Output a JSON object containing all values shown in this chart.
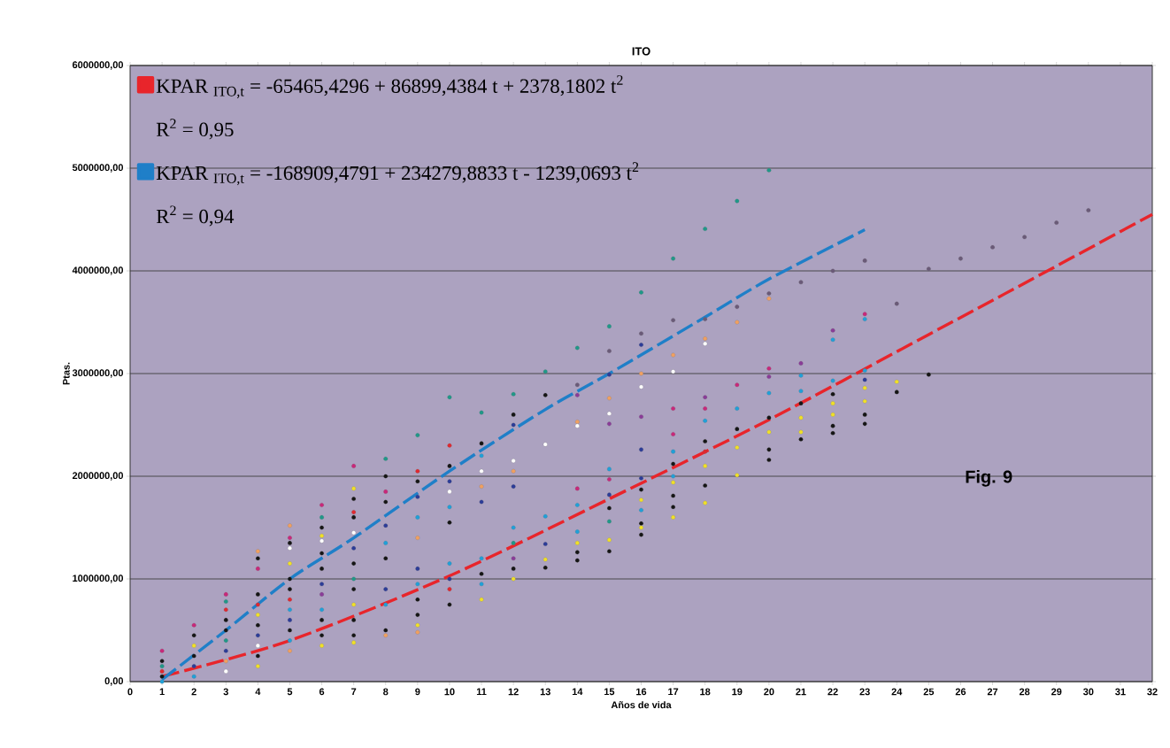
{
  "chart_data": {
    "type": "scatter",
    "title": "ITO",
    "xlabel": "Años de vida",
    "ylabel": "Ptas.",
    "xlim": [
      0,
      32
    ],
    "ylim": [
      0,
      6000000
    ],
    "xticks": [
      0,
      1,
      2,
      3,
      4,
      5,
      6,
      7,
      8,
      9,
      10,
      11,
      12,
      13,
      14,
      15,
      16,
      17,
      18,
      19,
      20,
      21,
      22,
      23,
      24,
      25,
      26,
      27,
      28,
      29,
      30,
      31,
      32
    ],
    "yticks": [
      {
        "value": 0,
        "label": "0,00"
      },
      {
        "value": 1000000,
        "label": "1000000,00"
      },
      {
        "value": 2000000,
        "label": "2000000,00"
      },
      {
        "value": 3000000,
        "label": "3000000,00"
      },
      {
        "value": 4000000,
        "label": "4000000,00"
      },
      {
        "value": 5000000,
        "label": "5000000,00"
      },
      {
        "value": 6000000,
        "label": "6000000,00"
      }
    ],
    "grid": "y",
    "legend": "top left",
    "annotations": [
      "R$^{2}$ = 0,95",
      "R$^{2}$ = 0,94",
      "Fig. 9"
    ],
    "series": [
      {
        "marker": "circle",
        "x": [
          1,
          1,
          1,
          1,
          1,
          1,
          2,
          2,
          2,
          2,
          2,
          2,
          3,
          3,
          3,
          3,
          3,
          3,
          3,
          3,
          3,
          4,
          4,
          4,
          4,
          4,
          4,
          4,
          4,
          4,
          4,
          4,
          5,
          5,
          5,
          5,
          5,
          5,
          5,
          5,
          5,
          5,
          5,
          5,
          5,
          6,
          6,
          6,
          6,
          6,
          6,
          6,
          6,
          6,
          6,
          6,
          6,
          6,
          7,
          7,
          7,
          7,
          7,
          7,
          7,
          7,
          7,
          7,
          7,
          7,
          7,
          7,
          8,
          8,
          8,
          8,
          8,
          8,
          8,
          8,
          8,
          8,
          8,
          9,
          9,
          9,
          9,
          9,
          9,
          9,
          9,
          9,
          9,
          9,
          9,
          10,
          10,
          10,
          10,
          10,
          10,
          10,
          10,
          10,
          10,
          10,
          11,
          11,
          11,
          11,
          11,
          11,
          11,
          11,
          11,
          11,
          12,
          12,
          12,
          12,
          12,
          12,
          12,
          12,
          12,
          12,
          12,
          13,
          13,
          13,
          13,
          13,
          13,
          13,
          14,
          14,
          14,
          14,
          14,
          14,
          14,
          14,
          14,
          14,
          14,
          15,
          15,
          15,
          15,
          15,
          15,
          15,
          15,
          15,
          15,
          15,
          15,
          15,
          16,
          16,
          16,
          16,
          16,
          16,
          16,
          16,
          16,
          16,
          16,
          16,
          16,
          16,
          17,
          17,
          17,
          17,
          17,
          17,
          17,
          17,
          17,
          17,
          17,
          17,
          17,
          18,
          18,
          18,
          18,
          18,
          18,
          18,
          18,
          18,
          18,
          18,
          18,
          19,
          19,
          19,
          19,
          19,
          19,
          19,
          19,
          20,
          20,
          20,
          20,
          20,
          20,
          20,
          20,
          20,
          20,
          21,
          21,
          21,
          21,
          21,
          21,
          21,
          21,
          22,
          22,
          22,
          22,
          22,
          22,
          22,
          22,
          22,
          23,
          23,
          23,
          23,
          23,
          23,
          23,
          23,
          23,
          24,
          24,
          24,
          25,
          25,
          26,
          27,
          28,
          29,
          30
        ],
        "values": [
          300000,
          200000,
          150000,
          100000,
          50000,
          0,
          550000,
          450000,
          350000,
          250000,
          150000,
          50000,
          850000,
          780000,
          700000,
          600000,
          500000,
          400000,
          300000,
          200000,
          100000,
          1270000,
          1200000,
          1100000,
          850000,
          750000,
          650000,
          550000,
          450000,
          350000,
          250000,
          150000,
          1520000,
          1400000,
          1350000,
          1300000,
          1150000,
          1000000,
          900000,
          800000,
          700000,
          600000,
          500000,
          400000,
          300000,
          1720000,
          1600000,
          1500000,
          1420000,
          1370000,
          1250000,
          1100000,
          950000,
          850000,
          700000,
          600000,
          450000,
          350000,
          2100000,
          1880000,
          1780000,
          1650000,
          1600000,
          1450000,
          1300000,
          1150000,
          1000000,
          900000,
          750000,
          600000,
          450000,
          380000,
          2170000,
          2000000,
          1850000,
          1750000,
          1520000,
          1350000,
          1200000,
          900000,
          750000,
          500000,
          450000,
          2400000,
          2050000,
          1950000,
          1800000,
          1600000,
          1400000,
          1100000,
          950000,
          800000,
          650000,
          550000,
          480000,
          2770000,
          2300000,
          2100000,
          1950000,
          1850000,
          1700000,
          1550000,
          1150000,
          1000000,
          900000,
          750000,
          2620000,
          2320000,
          2200000,
          2050000,
          1900000,
          1750000,
          1200000,
          1050000,
          950000,
          800000,
          2800000,
          2600000,
          2500000,
          2150000,
          2050000,
          1900000,
          1500000,
          1350000,
          1200000,
          1100000,
          1000000,
          3020000,
          2790000,
          2310000,
          1610000,
          1340000,
          1190000,
          1110000,
          3250000,
          2890000,
          2790000,
          2530000,
          2490000,
          1880000,
          1720000,
          1460000,
          1350000,
          1260000,
          1180000,
          3460000,
          3220000,
          2990000,
          2760000,
          2610000,
          2510000,
          2070000,
          1970000,
          1820000,
          1690000,
          1560000,
          1380000,
          1270000,
          3790000,
          3390000,
          3280000,
          3000000,
          2870000,
          2580000,
          2260000,
          1980000,
          1870000,
          1770000,
          1670000,
          1540000,
          1500000,
          1430000,
          4120000,
          3520000,
          3180000,
          3020000,
          2660000,
          2410000,
          2240000,
          2120000,
          2000000,
          1940000,
          1810000,
          1700000,
          1600000,
          4410000,
          3530000,
          3340000,
          3290000,
          2770000,
          2660000,
          2540000,
          2340000,
          2240000,
          2100000,
          1910000,
          1740000,
          4680000,
          3650000,
          3500000,
          2890000,
          2660000,
          2460000,
          2280000,
          2010000,
          4980000,
          3780000,
          3730000,
          3050000,
          2970000,
          2810000,
          2570000,
          2430000,
          2260000,
          2160000,
          3890000,
          3100000,
          2980000,
          2830000,
          2710000,
          2570000,
          2430000,
          2360000,
          4000000,
          3420000,
          3330000,
          2930000,
          2800000,
          2710000,
          2600000,
          2490000,
          2420000,
          4100000,
          3580000,
          3530000,
          3030000,
          2940000,
          2860000,
          2730000,
          2600000,
          2510000,
          3680000,
          2920000,
          2820000,
          4020000,
          2990000,
          4120000,
          4230000,
          4330000,
          4470000,
          4590000
        ],
        "colors": [
          "#c8287a",
          "#151515",
          "#209888",
          "#e02830",
          "#151515",
          "#20a0d8",
          "#c8287a",
          "#151515",
          "#f0e028",
          "#151515",
          "#2c3c98",
          "#20a0d8",
          "#c8287a",
          "#209888",
          "#e02830",
          "#151515",
          "#151515",
          "#209888",
          "#2c3c98",
          "#f0a060",
          "#ffffff",
          "#f0a060",
          "#151515",
          "#c8287a",
          "#151515",
          "#e02830",
          "#f0e028",
          "#151515",
          "#2c3c98",
          "#ffffff",
          "#151515",
          "#f0e028",
          "#f0a060",
          "#c8287a",
          "#151515",
          "#ffffff",
          "#f0e028",
          "#151515",
          "#151515",
          "#e02830",
          "#20a0d8",
          "#2c3c98",
          "#151515",
          "#20a0d8",
          "#f0a060",
          "#c8287a",
          "#209888",
          "#151515",
          "#f0e028",
          "#ffffff",
          "#151515",
          "#151515",
          "#2c3c98",
          "#8a3c98",
          "#20a0d8",
          "#151515",
          "#151515",
          "#f0e028",
          "#c8287a",
          "#f0e028",
          "#151515",
          "#e02830",
          "#151515",
          "#ffffff",
          "#2c3c98",
          "#151515",
          "#209888",
          "#151515",
          "#f0e028",
          "#151515",
          "#151515",
          "#f0e028",
          "#209888",
          "#151515",
          "#c8287a",
          "#151515",
          "#2c3c98",
          "#20a0d8",
          "#151515",
          "#2c3c98",
          "#20a0d8",
          "#151515",
          "#f0a060",
          "#209888",
          "#e02830",
          "#151515",
          "#2c3c98",
          "#20a0d8",
          "#f0a060",
          "#2c3c98",
          "#20a0d8",
          "#151515",
          "#151515",
          "#f0e028",
          "#f0a060",
          "#209888",
          "#e02830",
          "#151515",
          "#2c3c98",
          "#ffffff",
          "#20a0d8",
          "#151515",
          "#20a0d8",
          "#2c3c98",
          "#e02830",
          "#151515",
          "#209888",
          "#151515",
          "#20a0d8",
          "#ffffff",
          "#f0a060",
          "#2c3c98",
          "#20a0d8",
          "#151515",
          "#20a0d8",
          "#f0e028",
          "#209888",
          "#151515",
          "#2c3c98",
          "#ffffff",
          "#f0a060",
          "#2c3c98",
          "#20a0d8",
          "#209888",
          "#8a3c98",
          "#151515",
          "#f0e028",
          "#209888",
          "#151515",
          "#ffffff",
          "#20a0d8",
          "#2c3c98",
          "#f0e028",
          "#151515",
          "#209888",
          "#6a5a78",
          "#8a3c98",
          "#f0a060",
          "#ffffff",
          "#c8287a",
          "#20a0d8",
          "#20a0d8",
          "#f0e028",
          "#151515",
          "#151515",
          "#209888",
          "#6a5a78",
          "#2c3c98",
          "#f0a060",
          "#ffffff",
          "#8a3c98",
          "#20a0d8",
          "#c8287a",
          "#2c3c98",
          "#151515",
          "#209888",
          "#f0e028",
          "#151515",
          "#209888",
          "#6a5a78",
          "#2c3c98",
          "#f0a060",
          "#ffffff",
          "#8a3c98",
          "#2c3c98",
          "#2c3c98",
          "#151515",
          "#f0e028",
          "#20a0d8",
          "#151515",
          "#f0e028",
          "#151515",
          "#209888",
          "#6a5a78",
          "#f0a060",
          "#ffffff",
          "#c8287a",
          "#c8287a",
          "#20a0d8",
          "#151515",
          "#20a0d8",
          "#f0e028",
          "#151515",
          "#151515",
          "#f0e028",
          "#209888",
          "#6a5a78",
          "#f0a060",
          "#ffffff",
          "#8a3c98",
          "#c8287a",
          "#20a0d8",
          "#151515",
          "#e02830",
          "#f0e028",
          "#151515",
          "#f0e028",
          "#209888",
          "#6a5a78",
          "#f0a060",
          "#c8287a",
          "#20a0d8",
          "#151515",
          "#f0e028",
          "#f0e028",
          "#209888",
          "#6a5a78",
          "#f0a060",
          "#c8287a",
          "#8a3c98",
          "#20a0d8",
          "#151515",
          "#f0e028",
          "#151515",
          "#151515",
          "#6a5a78",
          "#8a3c98",
          "#20a0d8",
          "#20a0d8",
          "#151515",
          "#f0e028",
          "#f0e028",
          "#151515",
          "#6a5a78",
          "#8a3c98",
          "#20a0d8",
          "#20a0d8",
          "#151515",
          "#f0e028",
          "#f0e028",
          "#151515",
          "#151515",
          "#6a5a78",
          "#c8287a",
          "#20a0d8",
          "#20a0d8",
          "#2c3c98",
          "#f0e028",
          "#f0e028",
          "#151515",
          "#151515",
          "#6a5a78",
          "#f0e028",
          "#151515",
          "#6a5a78",
          "#151515",
          "#6a5a78",
          "#6a5a78",
          "#6a5a78",
          "#6a5a78",
          "#6a5a78"
        ]
      },
      {
        "type": "line",
        "name": "KPAR $_{ITO,t}$ = -65465,4296 + 86899,4384 t + 2378,1802 t$^{2}$",
        "color": "#e8252b",
        "line_style": "dashed",
        "marker": "none",
        "x": [
          1,
          5,
          10,
          15,
          20,
          25,
          28,
          32
        ],
        "values": [
          50000,
          400000,
          1030000,
          1780000,
          2550000,
          3380000,
          3880000,
          4550000
        ]
      },
      {
        "type": "line",
        "name": "KPAR $_{ITO,t}$ = -168909,4791 + 234279,8833 t - 1239,0693 t$^{2}$",
        "color": "#1f7fc8",
        "line_style": "dashed",
        "marker": "none",
        "x": [
          1,
          3,
          5,
          7,
          10,
          13,
          15,
          18,
          20,
          23
        ],
        "values": [
          20000,
          500000,
          1000000,
          1400000,
          2050000,
          2650000,
          3000000,
          3550000,
          3920000,
          4400000
        ]
      }
    ]
  }
}
